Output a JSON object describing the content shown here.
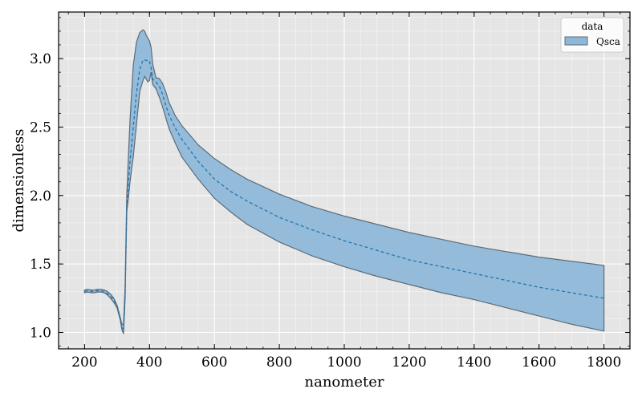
{
  "chart_data": {
    "type": "area",
    "xlabel": "nanometer",
    "ylabel": "dimensionless",
    "xlim": [
      120,
      1880
    ],
    "ylim": [
      0.88,
      3.34
    ],
    "xticks": [
      200,
      400,
      600,
      800,
      1000,
      1200,
      1400,
      1600,
      1800
    ],
    "xtick_labels": [
      "200",
      "400",
      "600",
      "800",
      "1000",
      "1200",
      "1400",
      "1600",
      "1800"
    ],
    "yticks": [
      1.0,
      1.5,
      2.0,
      2.5,
      3.0
    ],
    "ytick_labels": [
      "1.0",
      "1.5",
      "2.0",
      "2.5",
      "3.0"
    ],
    "x_minor_step": 50,
    "y_minor_step": 0.1,
    "grid": true,
    "legend": {
      "title": "data",
      "placement": "top-right",
      "entries": [
        "Qsca"
      ]
    },
    "series": [
      {
        "name": "Qsca",
        "fill_color": "#8fb8d8",
        "edge_color": "#5d6c78",
        "line_color": "#1f77b4",
        "line_style": "dashed",
        "x": [
          200,
          210,
          220,
          230,
          240,
          250,
          260,
          270,
          280,
          290,
          300,
          310,
          315,
          320,
          325,
          330,
          335,
          340,
          350,
          360,
          370,
          380,
          385,
          390,
          395,
          400,
          405,
          410,
          420,
          430,
          440,
          450,
          460,
          480,
          500,
          550,
          600,
          650,
          700,
          800,
          900,
          1000,
          1100,
          1200,
          1300,
          1400,
          1500,
          1600,
          1700,
          1800
        ],
        "mean": [
          1.3,
          1.305,
          1.3,
          1.3,
          1.305,
          1.305,
          1.3,
          1.285,
          1.265,
          1.235,
          1.19,
          1.1,
          1.04,
          1.02,
          1.3,
          1.9,
          2.08,
          2.25,
          2.5,
          2.75,
          2.92,
          2.99,
          2.99,
          2.985,
          2.99,
          2.98,
          2.93,
          2.85,
          2.83,
          2.8,
          2.74,
          2.66,
          2.59,
          2.49,
          2.41,
          2.25,
          2.12,
          2.03,
          1.96,
          1.84,
          1.75,
          1.67,
          1.6,
          1.53,
          1.48,
          1.43,
          1.38,
          1.33,
          1.29,
          1.25
        ],
        "upper": [
          1.31,
          1.315,
          1.31,
          1.31,
          1.315,
          1.315,
          1.31,
          1.3,
          1.28,
          1.25,
          1.2,
          1.11,
          1.06,
          1.06,
          1.34,
          2.0,
          2.28,
          2.55,
          2.95,
          3.12,
          3.19,
          3.21,
          3.2,
          3.17,
          3.15,
          3.13,
          3.08,
          2.96,
          2.86,
          2.855,
          2.82,
          2.76,
          2.68,
          2.58,
          2.51,
          2.37,
          2.27,
          2.19,
          2.12,
          2.01,
          1.92,
          1.85,
          1.79,
          1.73,
          1.68,
          1.63,
          1.59,
          1.55,
          1.52,
          1.49
        ],
        "lower": [
          1.29,
          1.295,
          1.29,
          1.29,
          1.295,
          1.295,
          1.29,
          1.275,
          1.25,
          1.22,
          1.18,
          1.09,
          1.02,
          0.99,
          1.25,
          1.88,
          1.98,
          2.1,
          2.28,
          2.52,
          2.76,
          2.84,
          2.87,
          2.85,
          2.83,
          2.84,
          2.9,
          2.81,
          2.78,
          2.72,
          2.65,
          2.57,
          2.49,
          2.38,
          2.28,
          2.12,
          1.98,
          1.88,
          1.79,
          1.66,
          1.56,
          1.48,
          1.41,
          1.35,
          1.29,
          1.24,
          1.18,
          1.12,
          1.06,
          1.01
        ]
      }
    ]
  }
}
